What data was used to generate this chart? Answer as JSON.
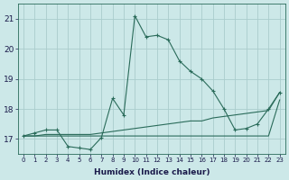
{
  "xlabel": "Humidex (Indice chaleur)",
  "background_color": "#cce8e8",
  "grid_color": "#aacccc",
  "line_color": "#2a6b5a",
  "xlim": [
    -0.5,
    23.5
  ],
  "ylim": [
    16.5,
    21.5
  ],
  "yticks": [
    17,
    18,
    19,
    20,
    21
  ],
  "xticks": [
    0,
    1,
    2,
    3,
    4,
    5,
    6,
    7,
    8,
    9,
    10,
    11,
    12,
    13,
    14,
    15,
    16,
    17,
    18,
    19,
    20,
    21,
    22,
    23
  ],
  "line1_x": [
    0,
    1,
    2,
    3,
    4,
    5,
    6,
    7,
    8,
    9,
    10,
    11,
    12,
    13,
    14,
    15,
    16,
    17,
    18,
    19,
    20,
    21,
    22,
    23
  ],
  "line1_y": [
    17.1,
    17.2,
    17.3,
    17.3,
    16.75,
    16.7,
    16.65,
    17.05,
    18.35,
    17.8,
    21.1,
    20.4,
    20.45,
    20.3,
    19.6,
    19.25,
    19.0,
    18.6,
    18.0,
    17.3,
    17.35,
    17.5,
    18.0,
    18.55
  ],
  "line2_x": [
    0,
    1,
    2,
    3,
    4,
    5,
    6,
    7,
    8,
    9,
    10,
    11,
    12,
    13,
    14,
    15,
    16,
    17,
    18,
    19,
    20,
    21,
    22,
    23
  ],
  "line2_y": [
    17.1,
    17.1,
    17.15,
    17.15,
    17.15,
    17.15,
    17.15,
    17.2,
    17.25,
    17.3,
    17.35,
    17.4,
    17.45,
    17.5,
    17.55,
    17.6,
    17.6,
    17.7,
    17.75,
    17.8,
    17.85,
    17.9,
    17.95,
    18.55
  ],
  "line3_x": [
    0,
    1,
    2,
    3,
    4,
    5,
    6,
    7,
    8,
    9,
    10,
    11,
    12,
    13,
    14,
    15,
    16,
    17,
    18,
    19,
    20,
    21,
    22,
    23
  ],
  "line3_y": [
    17.1,
    17.1,
    17.1,
    17.1,
    17.1,
    17.1,
    17.1,
    17.1,
    17.1,
    17.1,
    17.1,
    17.1,
    17.1,
    17.1,
    17.1,
    17.1,
    17.1,
    17.1,
    17.1,
    17.1,
    17.1,
    17.1,
    17.1,
    18.3
  ]
}
